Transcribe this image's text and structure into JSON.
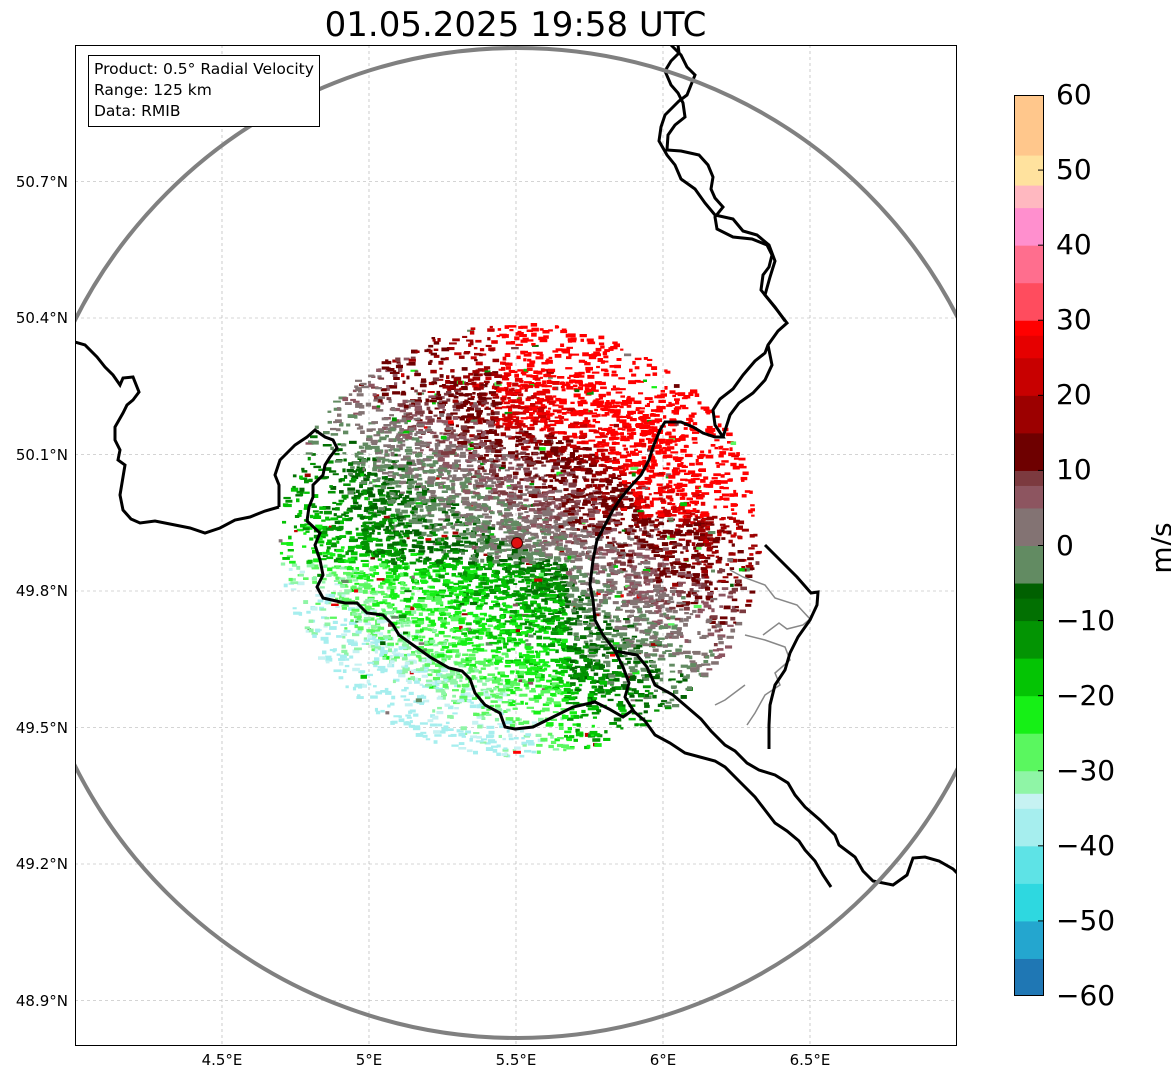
{
  "title": "01.05.2025 19:58 UTC",
  "info": {
    "product": "Product: 0.5° Radial Velocity",
    "range": "Range: 125 km",
    "data": "Data: RMIB"
  },
  "map": {
    "lon_range": [
      4.0,
      7.0
    ],
    "lat_range": [
      48.8,
      51.0
    ],
    "radar_site": {
      "lon": 5.505,
      "lat": 49.915
    },
    "range_ring_km": 125,
    "lat_ticks": [
      {
        "value": 50.7,
        "label": "50.7°N"
      },
      {
        "value": 50.4,
        "label": "50.4°N"
      },
      {
        "value": 50.1,
        "label": "50.1°N"
      },
      {
        "value": 49.8,
        "label": "49.8°N"
      },
      {
        "value": 49.5,
        "label": "49.5°N"
      },
      {
        "value": 49.2,
        "label": "49.2°N"
      },
      {
        "value": 48.9,
        "label": "48.9°N"
      }
    ],
    "lon_ticks": [
      {
        "value": 4.5,
        "label": "4.5°E"
      },
      {
        "value": 5.0,
        "label": "5°E"
      },
      {
        "value": 5.5,
        "label": "5.5°E"
      },
      {
        "value": 6.0,
        "label": "6°E"
      },
      {
        "value": 6.5,
        "label": "6.5°E"
      }
    ],
    "grid": true,
    "colors": {
      "border": "#000000",
      "minor_border": "#888888",
      "range_ring": "#808080",
      "radar_site": "#e01010"
    }
  },
  "colorbar": {
    "label": "m/s",
    "vmin": -60,
    "vmax": 60,
    "ticks": [
      {
        "value": 60,
        "label": "60"
      },
      {
        "value": 50,
        "label": "50"
      },
      {
        "value": 40,
        "label": "40"
      },
      {
        "value": 30,
        "label": "30"
      },
      {
        "value": 20,
        "label": "20"
      },
      {
        "value": 10,
        "label": "10"
      },
      {
        "value": 0,
        "label": "0"
      },
      {
        "value": -10,
        "label": "−10"
      },
      {
        "value": -20,
        "label": "−20"
      },
      {
        "value": -30,
        "label": "−30"
      },
      {
        "value": -40,
        "label": "−40"
      },
      {
        "value": -50,
        "label": "−50"
      },
      {
        "value": -60,
        "label": "−60"
      }
    ],
    "stops": [
      {
        "value": -60,
        "color": "#1f77b4"
      },
      {
        "value": -55,
        "color": "#24a6cf"
      },
      {
        "value": -50,
        "color": "#2ed8e0"
      },
      {
        "value": -45,
        "color": "#5ee3e6"
      },
      {
        "value": -40,
        "color": "#a6eeee"
      },
      {
        "value": -35,
        "color": "#c6f2f2"
      },
      {
        "value": -33,
        "color": "#8ff5a6"
      },
      {
        "value": -30,
        "color": "#5af75f"
      },
      {
        "value": -25,
        "color": "#16f016"
      },
      {
        "value": -20,
        "color": "#04c404"
      },
      {
        "value": -15,
        "color": "#039403"
      },
      {
        "value": -10,
        "color": "#027002"
      },
      {
        "value": -7,
        "color": "#016001"
      },
      {
        "value": -5,
        "color": "#628b62"
      },
      {
        "value": 0,
        "color": "#837373"
      },
      {
        "value": 5,
        "color": "#8d5560"
      },
      {
        "value": 8,
        "color": "#7c3a3f"
      },
      {
        "value": 10,
        "color": "#6e0000"
      },
      {
        "value": 15,
        "color": "#9c0000"
      },
      {
        "value": 20,
        "color": "#c80000"
      },
      {
        "value": 25,
        "color": "#e60000"
      },
      {
        "value": 28,
        "color": "#ff0000"
      },
      {
        "value": 30,
        "color": "#ff4c5e"
      },
      {
        "value": 35,
        "color": "#ff6e8e"
      },
      {
        "value": 40,
        "color": "#ff8fce"
      },
      {
        "value": 45,
        "color": "#ffb8c0"
      },
      {
        "value": 48,
        "color": "#ffe29e"
      },
      {
        "value": 52,
        "color": "#ffc78c"
      },
      {
        "value": 60,
        "color": "#ff9a55"
      }
    ]
  }
}
